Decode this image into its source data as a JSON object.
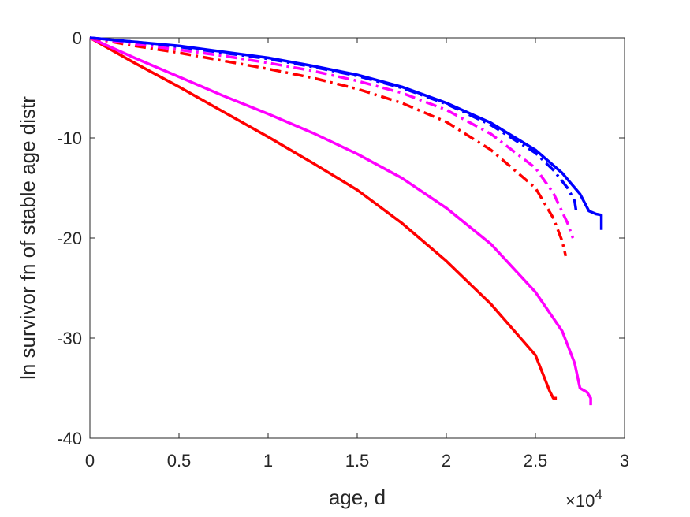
{
  "chart_data": {
    "type": "line",
    "xlabel": "age, d",
    "ylabel": "ln survivor fn of stable age distr",
    "x_exponent_label": "×10",
    "x_exponent_power": "4",
    "xlim": [
      0,
      3
    ],
    "ylim": [
      -40,
      0
    ],
    "xticks": [
      "0",
      "0.5",
      "1",
      "1.5",
      "2",
      "2.5",
      "3"
    ],
    "yticks": [
      "0",
      "-10",
      "-20",
      "-30",
      "-40"
    ],
    "xtick_values": [
      0,
      0.5,
      1,
      1.5,
      2,
      2.5,
      3
    ],
    "ytick_values": [
      0,
      -10,
      -20,
      -30,
      -40
    ],
    "grid": false,
    "series": [
      {
        "color": "#ff0000",
        "style": "solid",
        "x": [
          0,
          0.25,
          0.5,
          0.75,
          1.0,
          1.25,
          1.5,
          1.75,
          2.0,
          2.25,
          2.5,
          2.58,
          2.6,
          2.62
        ],
        "y": [
          0,
          -2.5,
          -4.9,
          -7.4,
          -9.9,
          -12.5,
          -15.2,
          -18.5,
          -22.3,
          -26.6,
          -31.7,
          -35.3,
          -36.0,
          -36.0
        ]
      },
      {
        "color": "#ff00ff",
        "style": "solid",
        "x": [
          0,
          0.25,
          0.5,
          0.75,
          1.0,
          1.25,
          1.5,
          1.75,
          2.0,
          2.25,
          2.5,
          2.65,
          2.72,
          2.75,
          2.79,
          2.81,
          2.81
        ],
        "y": [
          0,
          -2.0,
          -3.9,
          -5.8,
          -7.6,
          -9.5,
          -11.6,
          -14.0,
          -17.0,
          -20.6,
          -25.4,
          -29.3,
          -32.5,
          -35.0,
          -35.4,
          -36.0,
          -36.7
        ]
      },
      {
        "color": "#ff0000",
        "style": "dashdot",
        "x": [
          0,
          0.25,
          0.5,
          0.75,
          1.0,
          1.25,
          1.5,
          1.75,
          2.0,
          2.25,
          2.5,
          2.6,
          2.65,
          2.67
        ],
        "y": [
          0,
          -0.8,
          -1.5,
          -2.3,
          -3.1,
          -4.0,
          -5.1,
          -6.5,
          -8.4,
          -11.2,
          -15.0,
          -18.0,
          -20.3,
          -21.8
        ]
      },
      {
        "color": "#ff00ff",
        "style": "dashdot",
        "x": [
          0,
          0.25,
          0.5,
          0.75,
          1.0,
          1.25,
          1.5,
          1.75,
          2.0,
          2.25,
          2.5,
          2.6,
          2.68,
          2.71
        ],
        "y": [
          0,
          -0.6,
          -1.2,
          -1.8,
          -2.5,
          -3.3,
          -4.3,
          -5.5,
          -7.2,
          -9.6,
          -13.0,
          -15.5,
          -18.5,
          -20.0
        ]
      },
      {
        "color": "#0000ff",
        "style": "dashdot",
        "x": [
          0,
          0.25,
          0.5,
          0.75,
          1.0,
          1.25,
          1.5,
          1.75,
          2.0,
          2.25,
          2.5,
          2.6,
          2.68,
          2.72,
          2.73
        ],
        "y": [
          0,
          -0.4,
          -0.9,
          -1.5,
          -2.1,
          -2.9,
          -3.8,
          -5.0,
          -6.6,
          -8.7,
          -11.5,
          -13.2,
          -15.0,
          -16.3,
          -17.5
        ]
      },
      {
        "color": "#0000ff",
        "style": "solid",
        "x": [
          0,
          0.25,
          0.5,
          0.75,
          1.0,
          1.25,
          1.5,
          1.75,
          2.0,
          2.25,
          2.5,
          2.65,
          2.75,
          2.8,
          2.84,
          2.87,
          2.87
        ],
        "y": [
          0,
          -0.4,
          -0.8,
          -1.4,
          -2.0,
          -2.8,
          -3.7,
          -4.9,
          -6.5,
          -8.5,
          -11.2,
          -13.5,
          -15.6,
          -17.3,
          -17.6,
          -17.7,
          -19.2
        ]
      }
    ]
  }
}
